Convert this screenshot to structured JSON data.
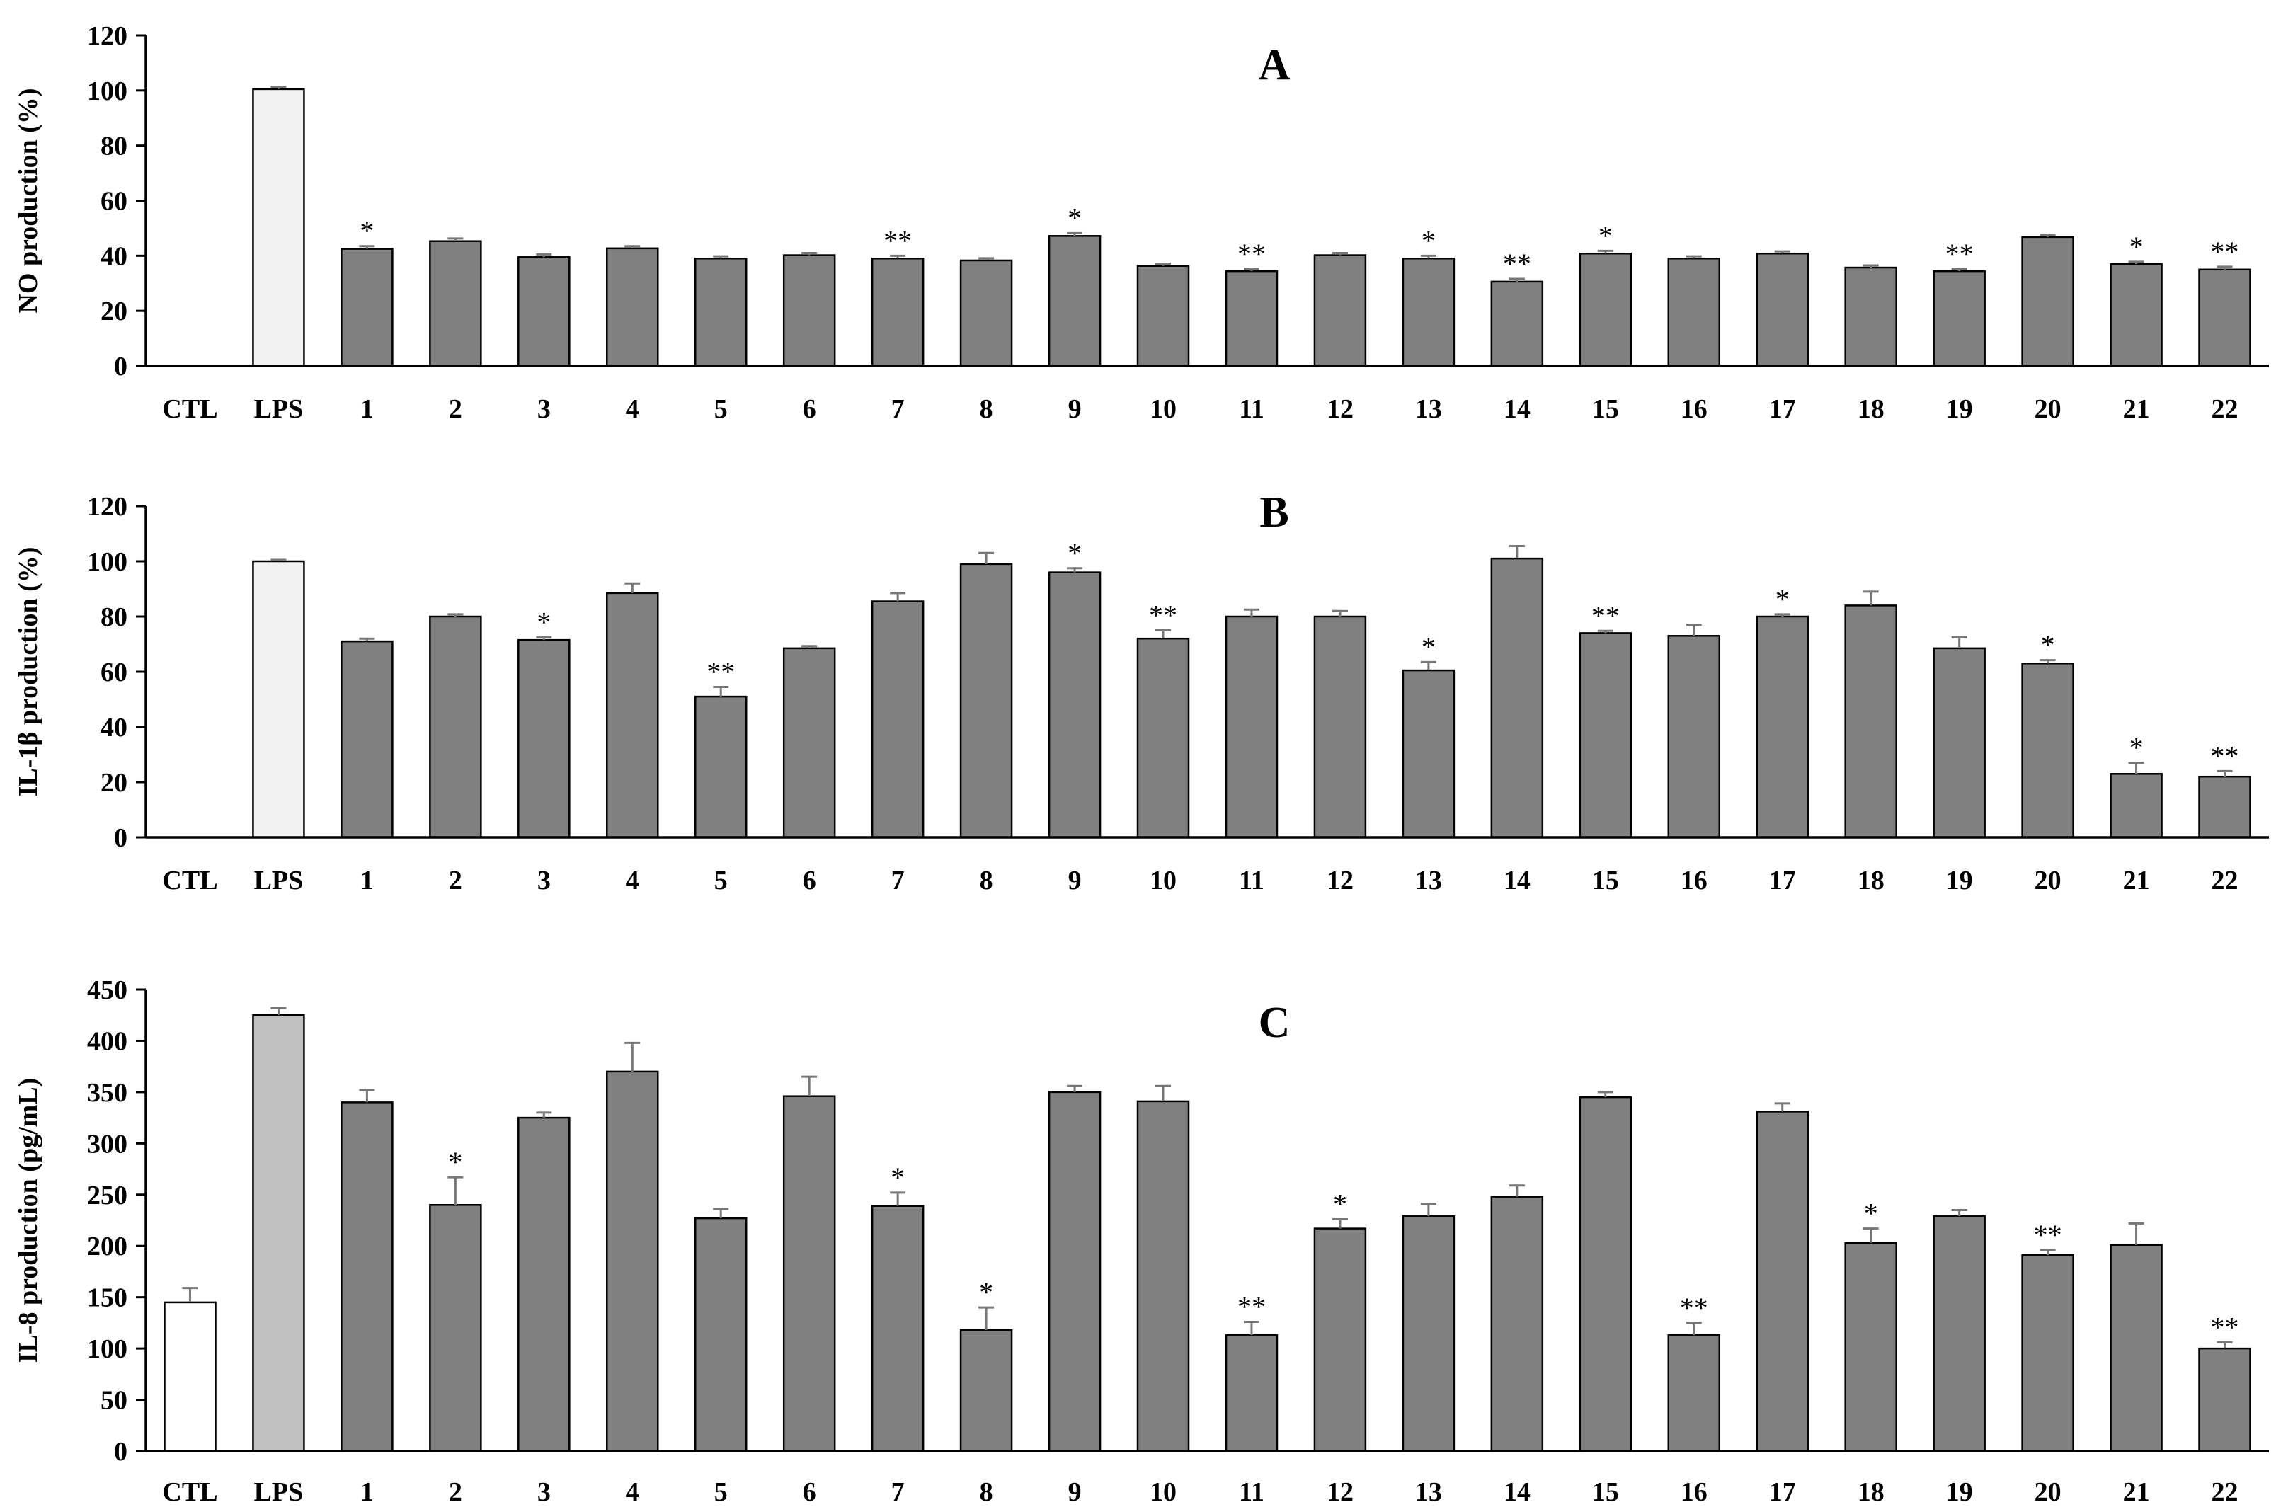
{
  "chart_data": [
    {
      "type": "bar",
      "title": "A",
      "xlabel": "",
      "ylabel": "NO production  (%)",
      "ylim": [
        0,
        120
      ],
      "yticks": [
        0,
        20,
        40,
        60,
        80,
        100,
        120
      ],
      "grid": false,
      "categories": [
        "CTL",
        "LPS",
        "1",
        "2",
        "3",
        "4",
        "5",
        "6",
        "7",
        "8",
        "9",
        "10",
        "11",
        "12",
        "13",
        "14",
        "15",
        "16",
        "17",
        "18",
        "19",
        "20",
        "21",
        "22"
      ],
      "values": [
        0,
        100.5,
        42.5,
        45.3,
        39.5,
        42.7,
        39,
        40.2,
        39,
        38.3,
        47.2,
        36.3,
        34.4,
        40.2,
        39,
        30.6,
        40.8,
        39,
        40.8,
        35.7,
        34.4,
        46.8,
        37,
        35
      ],
      "errors": [
        0,
        0.8,
        1,
        1,
        1,
        0.8,
        0.8,
        0.8,
        1,
        0.8,
        1,
        0.8,
        0.8,
        0.8,
        1,
        1,
        1,
        0.8,
        0.8,
        0.8,
        0.8,
        0.8,
        0.8,
        1
      ],
      "bar_colors": [
        "#ffffff",
        "#f2f2f2",
        "#808080",
        "#808080",
        "#808080",
        "#808080",
        "#808080",
        "#808080",
        "#808080",
        "#808080",
        "#808080",
        "#808080",
        "#808080",
        "#808080",
        "#808080",
        "#808080",
        "#808080",
        "#808080",
        "#808080",
        "#808080",
        "#808080",
        "#808080",
        "#808080",
        "#808080"
      ],
      "significance": [
        "",
        "",
        "*",
        "",
        "",
        "",
        "",
        "",
        "**",
        "",
        "*",
        "",
        "**",
        "",
        "*",
        "**",
        "*",
        "",
        "",
        "",
        "**",
        "",
        "*",
        "**"
      ]
    },
    {
      "type": "bar",
      "title": "B",
      "xlabel": "",
      "ylabel": "IL-1β production  (%)",
      "ylim": [
        0,
        120
      ],
      "yticks": [
        0,
        20,
        40,
        60,
        80,
        100,
        120
      ],
      "grid": false,
      "categories": [
        "CTL",
        "LPS",
        "1",
        "2",
        "3",
        "4",
        "5",
        "6",
        "7",
        "8",
        "9",
        "10",
        "11",
        "12",
        "13",
        "14",
        "15",
        "16",
        "17",
        "18",
        "19",
        "20",
        "21",
        "22"
      ],
      "values": [
        0,
        100,
        71,
        80,
        71.5,
        88.5,
        51,
        68.5,
        85.5,
        99,
        96,
        72,
        80,
        80,
        60.5,
        101,
        74,
        73,
        80,
        84,
        68.5,
        63,
        23,
        22
      ],
      "errors": [
        0,
        0.5,
        1,
        0.8,
        1,
        3.5,
        3.5,
        0.8,
        3,
        4,
        1.5,
        3,
        2.5,
        2,
        3,
        4.5,
        0.8,
        4,
        0.8,
        5,
        4,
        1.2,
        4,
        2
      ],
      "bar_colors": [
        "#ffffff",
        "#f2f2f2",
        "#808080",
        "#808080",
        "#808080",
        "#808080",
        "#808080",
        "#808080",
        "#808080",
        "#808080",
        "#808080",
        "#808080",
        "#808080",
        "#808080",
        "#808080",
        "#808080",
        "#808080",
        "#808080",
        "#808080",
        "#808080",
        "#808080",
        "#808080",
        "#808080",
        "#808080"
      ],
      "significance": [
        "",
        "",
        "",
        "",
        "*",
        "",
        "**",
        "",
        "",
        "",
        "*",
        "**",
        "",
        "",
        "*",
        "",
        "**",
        "",
        "*",
        "",
        "",
        "*",
        "*",
        "**"
      ]
    },
    {
      "type": "bar",
      "title": "C",
      "xlabel": "",
      "ylabel": "IL-8 production  (pg/mL)",
      "ylim": [
        0,
        450
      ],
      "yticks": [
        0,
        50,
        100,
        150,
        200,
        250,
        300,
        350,
        400,
        450
      ],
      "grid": false,
      "categories": [
        "CTL",
        "LPS",
        "1",
        "2",
        "3",
        "4",
        "5",
        "6",
        "7",
        "8",
        "9",
        "10",
        "11",
        "12",
        "13",
        "14",
        "15",
        "16",
        "17",
        "18",
        "19",
        "20",
        "21",
        "22"
      ],
      "values": [
        145,
        425,
        340,
        240,
        325,
        370,
        227,
        346,
        239,
        118,
        350,
        341,
        113,
        217,
        229,
        248,
        345,
        113,
        331,
        203,
        229,
        191,
        201,
        100
      ],
      "errors": [
        14,
        7,
        12,
        27,
        5,
        28,
        9,
        19,
        13,
        22,
        6,
        15,
        13,
        9,
        12,
        11,
        5,
        12,
        8,
        14,
        6,
        5,
        21,
        6
      ],
      "bar_colors": [
        "#ffffff",
        "#c0c0c0",
        "#808080",
        "#808080",
        "#808080",
        "#808080",
        "#808080",
        "#808080",
        "#808080",
        "#808080",
        "#808080",
        "#808080",
        "#808080",
        "#808080",
        "#808080",
        "#808080",
        "#808080",
        "#808080",
        "#808080",
        "#808080",
        "#808080",
        "#808080",
        "#808080",
        "#808080"
      ],
      "significance": [
        "",
        "",
        "",
        "*",
        "",
        "",
        "",
        "",
        "*",
        "*",
        "",
        "",
        "**",
        "*",
        "",
        "",
        "",
        "**",
        "",
        "*",
        "",
        "**",
        "",
        "**"
      ]
    }
  ]
}
